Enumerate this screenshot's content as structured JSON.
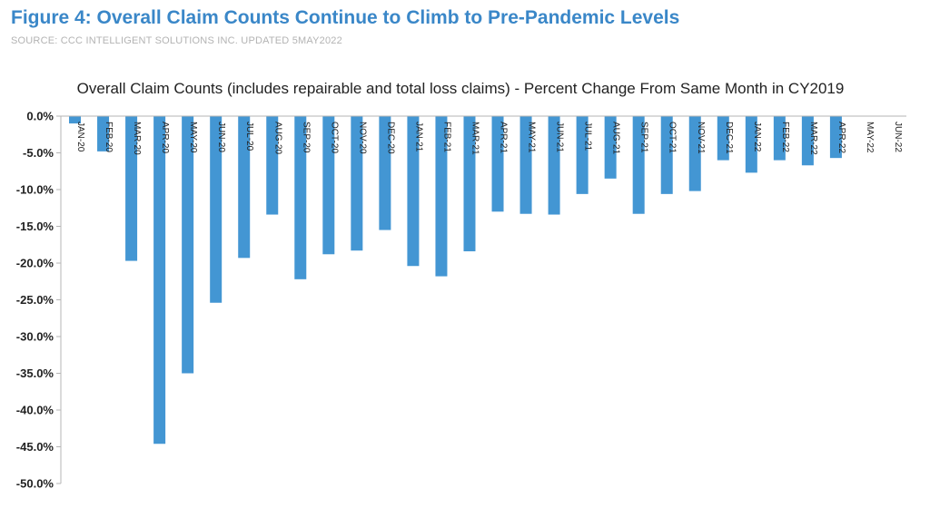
{
  "figure": {
    "title": "Figure 4: Overall Claim Counts Continue to Climb to Pre-Pandemic Levels",
    "source": "SOURCE: CCC INTELLIGENT SOLUTIONS INC. UPDATED 5MAY2022"
  },
  "chart_data": {
    "type": "bar",
    "title": "Overall Claim Counts (includes repairable and total loss claims) - Percent Change From Same Month in CY2019",
    "xlabel": "",
    "ylabel": "",
    "categories": [
      "JAN-20",
      "FEB-20",
      "MAR-20",
      "APR-20",
      "MAY-20",
      "JUN-20",
      "JUL-20",
      "AUG-20",
      "SEP-20",
      "OCT-20",
      "NOV-20",
      "DEC-20",
      "JAN-21",
      "FEB-21",
      "MAR-21",
      "APR-21",
      "MAY-21",
      "JUN-21",
      "JUL-21",
      "AUG-21",
      "SEP-21",
      "OCT-21",
      "NOV-21",
      "DEC-21",
      "JAN-22",
      "FEB-22",
      "MAR-22",
      "APR-22",
      "MAY-22",
      "JUN-22"
    ],
    "values": [
      -1.0,
      -4.8,
      -19.7,
      -44.6,
      -35.0,
      -25.4,
      -19.3,
      -13.4,
      -22.2,
      -18.8,
      -18.3,
      -15.5,
      -20.4,
      -21.8,
      -18.4,
      -13.0,
      -13.3,
      -13.4,
      -10.6,
      -8.5,
      -13.3,
      -10.6,
      -10.2,
      -6.0,
      -7.7,
      -6.0,
      -6.7,
      -5.7,
      null,
      null
    ],
    "yticks": [
      "0.0%",
      "-5.0%",
      "-10.0%",
      "-15.0%",
      "-20.0%",
      "-25.0%",
      "-30.0%",
      "-35.0%",
      "-40.0%",
      "-45.0%",
      "-50.0%"
    ],
    "ylim": [
      -50,
      0
    ],
    "grid": false,
    "legend": "none",
    "bar_color": "#4396d3",
    "axis_color": "#b5b5b5"
  }
}
